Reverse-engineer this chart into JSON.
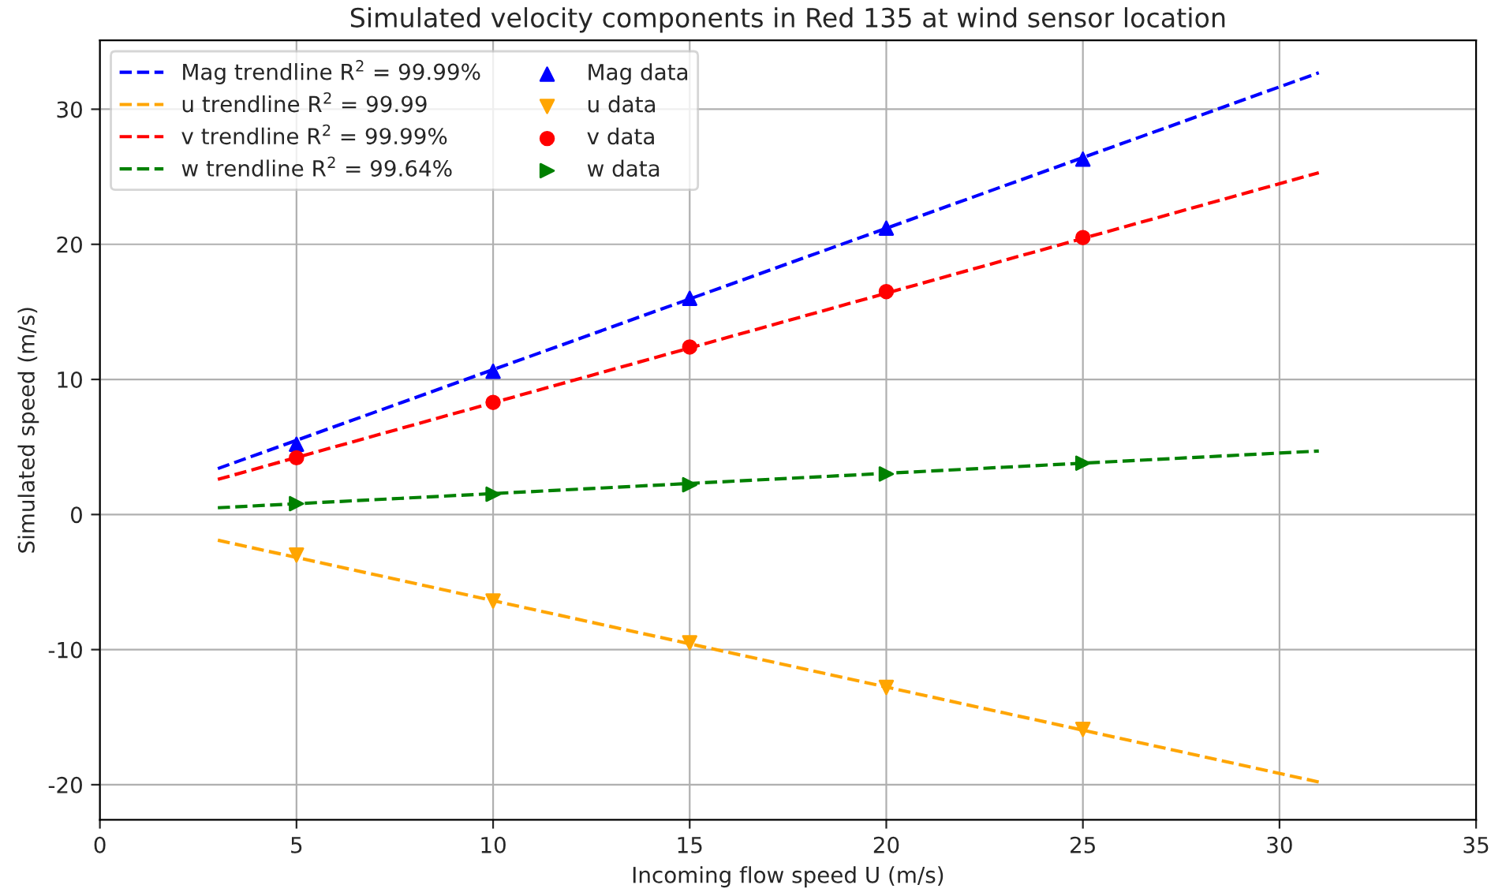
{
  "chart_data": {
    "type": "scatter",
    "title": "Simulated velocity components in Red 135 at wind sensor location",
    "xlabel": "Incoming flow speed U (m/s)",
    "ylabel": "Simulated speed (m/s)",
    "xlim": [
      0,
      35
    ],
    "ylim": [
      -22.6,
      35.1
    ],
    "xticks": [
      0,
      5,
      10,
      15,
      20,
      25,
      30,
      35
    ],
    "yticks": [
      -20,
      -10,
      0,
      10,
      20,
      30
    ],
    "grid": true,
    "legend": "top left",
    "series": [
      {
        "type": "line",
        "name": "Mag trendline R$^{2}$ = 99.99%",
        "color": "#0000ff",
        "line_style": "dashed",
        "x": [
          3,
          31
        ],
        "values": [
          3.4,
          32.7
        ]
      },
      {
        "type": "line",
        "name": "u trendline R$^{2}$ = 99.99",
        "color": "#ffa500",
        "line_style": "dashed",
        "x": [
          3,
          31
        ],
        "values": [
          -1.9,
          -19.8
        ]
      },
      {
        "type": "line",
        "name": "v trendline R$^{2}$ = 99.99%",
        "color": "#ff0000",
        "line_style": "dashed",
        "x": [
          3,
          31
        ],
        "values": [
          2.6,
          25.3
        ]
      },
      {
        "type": "line",
        "name": "w trendline R$^{2}$ = 99.64%",
        "color": "#008000",
        "line_style": "dashed",
        "x": [
          3,
          31
        ],
        "values": [
          0.5,
          4.7
        ]
      },
      {
        "name": "Mag data",
        "color": "#0000ff",
        "marker": "triangle",
        "x": [
          5,
          10,
          15,
          20,
          25
        ],
        "values": [
          5.2,
          10.6,
          16.0,
          21.2,
          26.3
        ]
      },
      {
        "name": "u data",
        "color": "#ffa500",
        "marker": "triangle_down",
        "x": [
          5,
          10,
          15,
          20,
          25
        ],
        "values": [
          -3.0,
          -6.4,
          -9.5,
          -12.8,
          -15.9
        ]
      },
      {
        "name": "v data",
        "color": "#ff0000",
        "marker": "circle",
        "x": [
          5,
          10,
          15,
          20,
          25
        ],
        "values": [
          4.2,
          8.3,
          12.4,
          16.5,
          20.5
        ]
      },
      {
        "name": "w data",
        "color": "#008000",
        "marker": "triangle_right",
        "x": [
          5,
          10,
          15,
          20,
          25
        ],
        "values": [
          0.8,
          1.5,
          2.2,
          3.0,
          3.8
        ]
      }
    ]
  }
}
